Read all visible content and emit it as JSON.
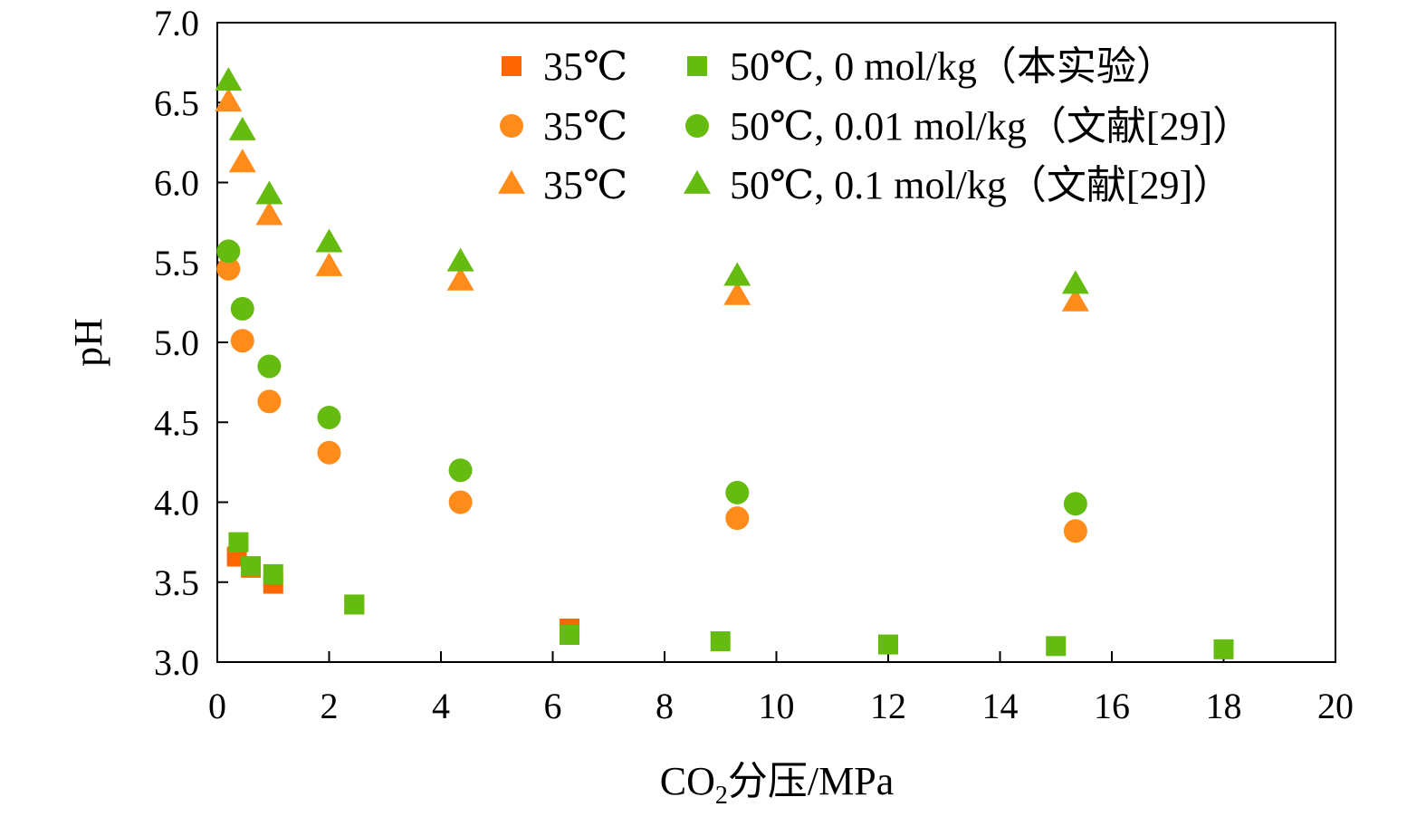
{
  "chart_data": {
    "type": "scatter",
    "xlabel": "CO2分压/MPa",
    "xlabel_parts": {
      "base": "CO",
      "sub": "2",
      "rest": "分压/MPa"
    },
    "ylabel": "pH",
    "xlim": [
      0,
      20
    ],
    "ylim": [
      3.0,
      7.0
    ],
    "x_ticks": [
      0,
      2,
      4,
      6,
      8,
      10,
      12,
      14,
      16,
      18,
      20
    ],
    "x_tick_labels": [
      "0",
      "2",
      "4",
      "6",
      "8",
      "10",
      "12",
      "14",
      "16",
      "18",
      "20"
    ],
    "y_ticks": [
      3.0,
      3.5,
      4.0,
      4.5,
      5.0,
      5.5,
      6.0,
      6.5,
      7.0
    ],
    "y_tick_labels": [
      "3.0",
      "3.5",
      "4.0",
      "4.5",
      "5.0",
      "5.5",
      "6.0",
      "6.5",
      "7.0"
    ],
    "grid": false,
    "legend_position": "top-right",
    "legend_columns": [
      [
        "35℃",
        "35℃",
        "35℃"
      ],
      [
        "50℃, 0 mol/kg（本实验）",
        "50℃, 0.01 mol/kg（文献[29]）",
        "50℃, 0.1 mol/kg（文献[29]）"
      ]
    ],
    "series": [
      {
        "name": "35℃",
        "marker": "square",
        "color": "#FF6600",
        "x": [
          0.35,
          0.6,
          1.0,
          2.45,
          6.3
        ],
        "y": [
          3.66,
          3.59,
          3.49,
          3.36,
          3.21
        ]
      },
      {
        "name": "35℃",
        "marker": "circle",
        "color": "#FF8C1A",
        "x": [
          0.2,
          0.45,
          0.93,
          2.0,
          4.35,
          9.3,
          15.35
        ],
        "y": [
          5.46,
          5.01,
          4.63,
          4.31,
          4.0,
          3.9,
          3.82
        ]
      },
      {
        "name": "35℃",
        "marker": "triangle",
        "color": "#FF8C1A",
        "x": [
          0.2,
          0.45,
          0.93,
          2.0,
          4.35,
          9.3,
          15.35
        ],
        "y": [
          6.5,
          6.12,
          5.79,
          5.47,
          5.38,
          5.29,
          5.25
        ]
      },
      {
        "name": "50℃, 0 mol/kg（本实验）",
        "marker": "square",
        "color": "#66BB11",
        "x": [
          0.38,
          0.6,
          1.0,
          2.45,
          6.3,
          9.0,
          12.0,
          15.0,
          18.0
        ],
        "y": [
          3.75,
          3.6,
          3.55,
          3.36,
          3.17,
          3.13,
          3.11,
          3.1,
          3.08
        ]
      },
      {
        "name": "50℃, 0.01 mol/kg（文献[29]）",
        "marker": "circle",
        "color": "#66BB11",
        "x": [
          0.2,
          0.45,
          0.93,
          2.0,
          4.35,
          9.3,
          15.35
        ],
        "y": [
          5.57,
          5.21,
          4.85,
          4.53,
          4.2,
          4.06,
          3.99
        ]
      },
      {
        "name": "50℃, 0.1 mol/kg（文献[29]）",
        "marker": "triangle",
        "color": "#66BB11",
        "x": [
          0.2,
          0.45,
          0.93,
          2.0,
          4.35,
          9.3,
          15.35
        ],
        "y": [
          6.63,
          6.32,
          5.92,
          5.62,
          5.5,
          5.41,
          5.36
        ]
      }
    ]
  }
}
